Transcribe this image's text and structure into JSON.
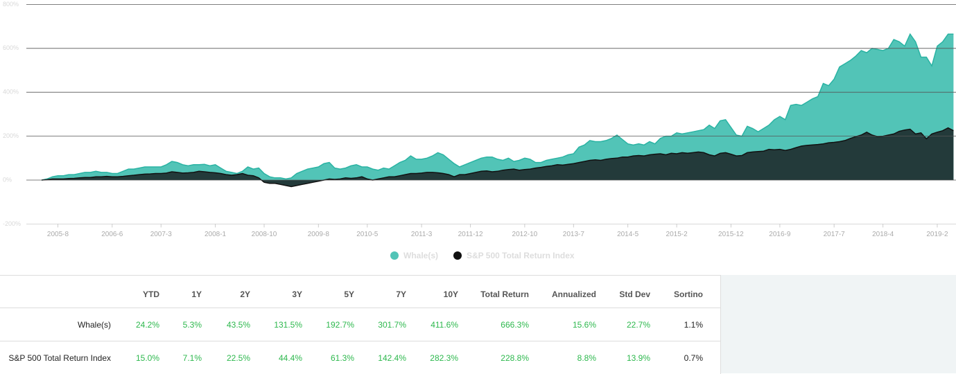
{
  "chart_data": {
    "type": "area",
    "categories": [
      null,
      null,
      null,
      "2005-8",
      null,
      null,
      null,
      null,
      null,
      null,
      null,
      null,
      null,
      "2006-6",
      null,
      null,
      null,
      null,
      null,
      null,
      null,
      null,
      "2007-3",
      null,
      null,
      null,
      null,
      null,
      null,
      null,
      null,
      null,
      "2008-1",
      null,
      null,
      null,
      null,
      null,
      null,
      null,
      null,
      "2008-10",
      null,
      null,
      null,
      null,
      null,
      null,
      null,
      null,
      null,
      "2009-8",
      null,
      null,
      null,
      null,
      null,
      null,
      null,
      null,
      "2010-5",
      null,
      null,
      null,
      null,
      null,
      null,
      null,
      null,
      null,
      "2011-3",
      null,
      null,
      null,
      null,
      null,
      null,
      null,
      null,
      "2011-12",
      null,
      null,
      null,
      null,
      null,
      null,
      null,
      null,
      null,
      "2012-10",
      null,
      null,
      null,
      null,
      null,
      null,
      null,
      null,
      "2013-7",
      null,
      null,
      null,
      null,
      null,
      null,
      null,
      null,
      null,
      "2014-5",
      null,
      null,
      null,
      null,
      null,
      null,
      null,
      null,
      "2015-2",
      null,
      null,
      null,
      null,
      null,
      null,
      null,
      null,
      null,
      "2015-12",
      null,
      null,
      null,
      null,
      null,
      null,
      null,
      null,
      "2016-9",
      null,
      null,
      null,
      null,
      null,
      null,
      null,
      null,
      null,
      "2017-7",
      null,
      null,
      null,
      null,
      null,
      null,
      null,
      null,
      "2018-4",
      null,
      null,
      null,
      null,
      null,
      null,
      null,
      null,
      null,
      "2019-2",
      null,
      null,
      null
    ],
    "series": [
      {
        "name": "Whale(s)",
        "color": "#2ab3a3",
        "fill": "#52c4b7",
        "values": [
          0,
          5,
          15,
          20,
          20,
          25,
          25,
          30,
          35,
          35,
          40,
          35,
          35,
          30,
          30,
          40,
          50,
          50,
          55,
          60,
          60,
          60,
          60,
          70,
          85,
          80,
          70,
          65,
          70,
          70,
          72,
          65,
          70,
          55,
          40,
          35,
          30,
          40,
          60,
          50,
          55,
          30,
          15,
          10,
          10,
          5,
          10,
          30,
          40,
          50,
          55,
          60,
          75,
          80,
          55,
          50,
          55,
          65,
          70,
          60,
          60,
          50,
          45,
          55,
          50,
          65,
          80,
          90,
          110,
          95,
          95,
          100,
          110,
          125,
          115,
          95,
          75,
          60,
          70,
          80,
          90,
          100,
          105,
          105,
          95,
          90,
          100,
          85,
          90,
          100,
          95,
          80,
          80,
          90,
          95,
          100,
          105,
          115,
          120,
          150,
          160,
          180,
          175,
          175,
          180,
          190,
          205,
          185,
          165,
          160,
          165,
          160,
          175,
          165,
          190,
          200,
          200,
          215,
          210,
          215,
          220,
          225,
          230,
          250,
          235,
          270,
          275,
          240,
          205,
          200,
          245,
          235,
          220,
          235,
          250,
          275,
          290,
          275,
          340,
          345,
          340,
          355,
          370,
          380,
          440,
          430,
          460,
          515,
          530,
          545,
          565,
          590,
          580,
          600,
          595,
          590,
          600,
          640,
          630,
          610,
          665,
          630,
          560,
          560,
          520,
          610,
          630,
          665,
          665
        ]
      },
      {
        "name": "S&P 500 Total Return Index",
        "color": "#111111",
        "fill": "#233a3a",
        "values": [
          0,
          2,
          5,
          5,
          5,
          7,
          8,
          10,
          12,
          12,
          15,
          15,
          17,
          15,
          15,
          17,
          20,
          22,
          25,
          27,
          28,
          30,
          30,
          32,
          38,
          35,
          32,
          33,
          35,
          40,
          38,
          35,
          33,
          30,
          25,
          22,
          25,
          30,
          22,
          20,
          10,
          -10,
          -15,
          -15,
          -20,
          -25,
          -30,
          -25,
          -20,
          -15,
          -10,
          -5,
          0,
          5,
          3,
          5,
          10,
          8,
          10,
          15,
          5,
          0,
          5,
          10,
          15,
          15,
          20,
          25,
          30,
          30,
          32,
          35,
          35,
          33,
          30,
          25,
          15,
          25,
          25,
          30,
          35,
          40,
          42,
          38,
          40,
          45,
          48,
          50,
          45,
          48,
          50,
          55,
          58,
          62,
          65,
          70,
          68,
          72,
          75,
          80,
          85,
          90,
          92,
          90,
          95,
          98,
          100,
          105,
          105,
          110,
          112,
          110,
          115,
          118,
          120,
          115,
          122,
          120,
          125,
          122,
          125,
          128,
          125,
          115,
          110,
          122,
          125,
          118,
          110,
          112,
          125,
          128,
          130,
          132,
          140,
          138,
          140,
          135,
          140,
          148,
          155,
          158,
          160,
          162,
          165,
          170,
          172,
          175,
          180,
          190,
          198,
          205,
          218,
          205,
          198,
          200,
          205,
          210,
          222,
          228,
          232,
          210,
          215,
          188,
          210,
          218,
          225,
          238,
          225
        ]
      }
    ],
    "ylim": [
      -200,
      800
    ],
    "yticks": [
      {
        "value": -200,
        "label": "-200%"
      },
      {
        "value": 0,
        "label": "0%"
      },
      {
        "value": 200,
        "label": "200%"
      },
      {
        "value": 400,
        "label": "400%"
      },
      {
        "value": 600,
        "label": "600%"
      },
      {
        "value": 800,
        "label": "800%"
      }
    ],
    "grid": true,
    "legend": "bottom"
  },
  "table": {
    "header": [
      "YTD",
      "1Y",
      "2Y",
      "3Y",
      "5Y",
      "7Y",
      "10Y",
      "Total Return",
      "Annualized",
      "Std Dev",
      "Sortino"
    ],
    "rows": [
      [
        "Whale(s)",
        "24.2%",
        "5.3%",
        "43.5%",
        "131.5%",
        "192.7%",
        "301.7%",
        "411.6%",
        "666.3%",
        "15.6%",
        "22.7%",
        "1.1%"
      ],
      [
        "S&P 500 Total Return Index",
        "15.0%",
        "7.1%",
        "22.5%",
        "44.4%",
        "61.3%",
        "142.4%",
        "282.3%",
        "228.8%",
        "8.8%",
        "13.9%",
        "0.7%"
      ]
    ]
  }
}
